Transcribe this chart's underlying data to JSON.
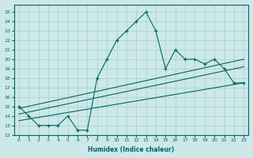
{
  "xlabel": "Humidex (Indice chaleur)",
  "bg_color": "#cce8e8",
  "grid_color": "#aacccc",
  "line_color": "#006666",
  "xlim": [
    -0.5,
    23.5
  ],
  "ylim": [
    12,
    25.8
  ],
  "yticks": [
    12,
    13,
    14,
    15,
    16,
    17,
    18,
    19,
    20,
    21,
    22,
    23,
    24,
    25
  ],
  "xticks": [
    0,
    1,
    2,
    3,
    4,
    5,
    6,
    7,
    8,
    9,
    10,
    11,
    12,
    13,
    14,
    15,
    16,
    17,
    18,
    19,
    20,
    21,
    22,
    23
  ],
  "main_x": [
    0,
    1,
    2,
    3,
    4,
    5,
    6,
    7,
    8,
    9,
    10,
    11,
    12,
    13,
    14,
    15,
    16,
    17,
    18,
    19,
    20,
    21,
    22,
    23
  ],
  "main_y": [
    15,
    14,
    13,
    13,
    13,
    14,
    12.5,
    12.5,
    18,
    20,
    22,
    23,
    24,
    25,
    23,
    19,
    21,
    20,
    20,
    19.5,
    20,
    19,
    17.5,
    17.5
  ],
  "line1_x": [
    0,
    23
  ],
  "line1_y": [
    13.5,
    17.5
  ],
  "line2_x": [
    0,
    23
  ],
  "line2_y": [
    14.2,
    19.2
  ],
  "line3_x": [
    0,
    23
  ],
  "line3_y": [
    14.8,
    20.0
  ]
}
